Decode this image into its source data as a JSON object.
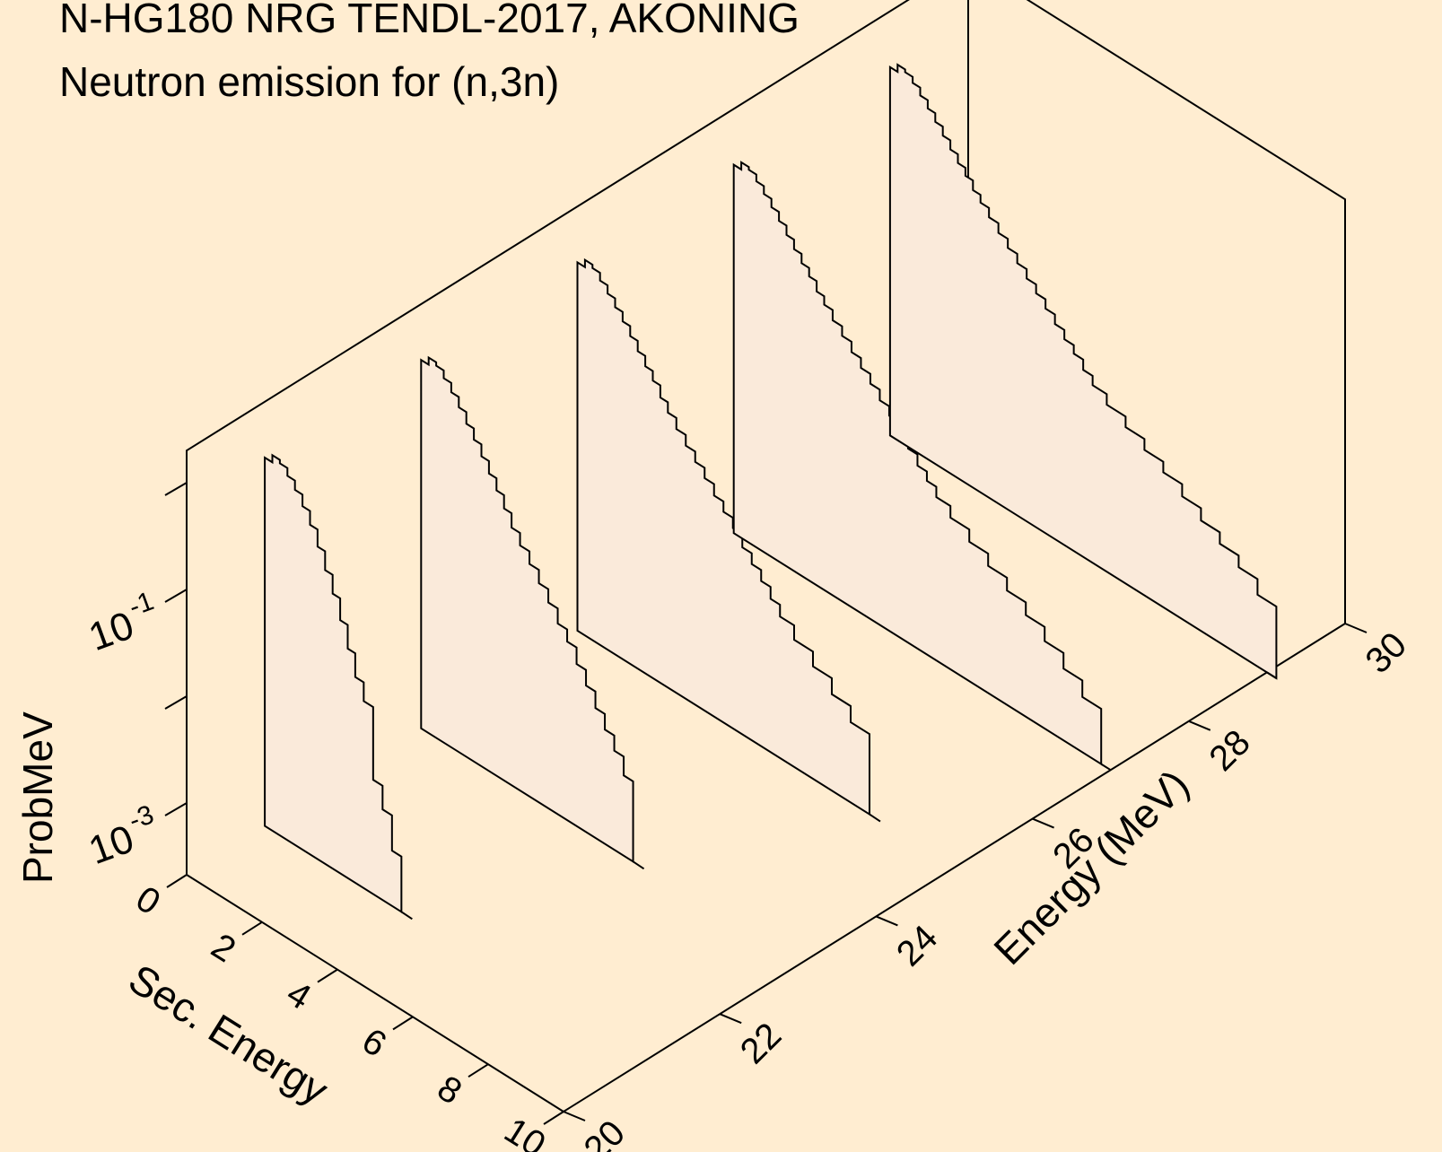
{
  "chart_data": {
    "type": "line",
    "title": "N-HG180 NRG TENDL-2017, AKONING",
    "subtitle": "Neutron emission for (n,3n)",
    "xlabel": "Sec. Energy",
    "ylabel": "Energy (MeV)",
    "zlabel": "ProbMeV",
    "xlim": [
      0,
      10
    ],
    "ylim": [
      20,
      30
    ],
    "zscale": "log",
    "zlim": [
      0.0003,
      2.0
    ],
    "x_ticks": [
      "0",
      "2",
      "4",
      "6",
      "8",
      "10"
    ],
    "y_ticks": [
      "20",
      "22",
      "24",
      "26",
      "28",
      "30"
    ],
    "z_tick_labels": [
      {
        "base": "10",
        "exp": "-3",
        "value": 0.001
      },
      {
        "base": "10",
        "exp": "-1",
        "value": 0.1
      }
    ],
    "z_minor_ticks": [
      0.01,
      1.0
    ],
    "series": [
      {
        "incident_energy": 21,
        "sec_energy": [
          0.1,
          0.3,
          0.5,
          0.7,
          0.9,
          1.1,
          1.3,
          1.5,
          1.7,
          1.9,
          2.1,
          2.3,
          2.5,
          2.75,
          3.0,
          3.25,
          3.5
        ],
        "prob": [
          0.6,
          0.7,
          0.65,
          0.55,
          0.45,
          0.35,
          0.26,
          0.18,
          0.12,
          0.08,
          0.05,
          0.03,
          0.018,
          0.012,
          0.0025,
          0.0015,
          0.0007
        ]
      },
      {
        "incident_energy": 23,
        "sec_energy": [
          0.1,
          0.3,
          0.5,
          0.7,
          0.9,
          1.1,
          1.3,
          1.5,
          1.7,
          1.9,
          2.1,
          2.3,
          2.5,
          2.75,
          3.0,
          3.25,
          3.5,
          3.75,
          4.0,
          4.25,
          4.5,
          4.75,
          5.0,
          5.25,
          5.5
        ],
        "prob": [
          0.6,
          0.7,
          0.65,
          0.55,
          0.45,
          0.36,
          0.28,
          0.22,
          0.17,
          0.13,
          0.1,
          0.075,
          0.055,
          0.042,
          0.032,
          0.024,
          0.018,
          0.013,
          0.01,
          0.007,
          0.005,
          0.0035,
          0.0025,
          0.0018,
          0.0012
        ]
      },
      {
        "incident_energy": 25,
        "sec_energy": [
          0.1,
          0.3,
          0.5,
          0.7,
          0.9,
          1.1,
          1.3,
          1.5,
          1.7,
          1.9,
          2.1,
          2.3,
          2.5,
          2.75,
          3.0,
          3.25,
          3.5,
          3.75,
          4.0,
          4.25,
          4.5,
          4.75,
          5.0,
          5.25,
          5.5,
          6.0,
          6.5,
          7.0,
          7.5
        ],
        "prob": [
          0.6,
          0.7,
          0.65,
          0.55,
          0.46,
          0.38,
          0.31,
          0.25,
          0.2,
          0.16,
          0.13,
          0.1,
          0.08,
          0.063,
          0.05,
          0.04,
          0.032,
          0.025,
          0.02,
          0.016,
          0.012,
          0.0095,
          0.0075,
          0.0058,
          0.0045,
          0.0033,
          0.0024,
          0.0017,
          0.0012
        ]
      },
      {
        "incident_energy": 27,
        "sec_energy": [
          0.1,
          0.3,
          0.5,
          0.7,
          0.9,
          1.1,
          1.3,
          1.5,
          1.7,
          1.9,
          2.1,
          2.3,
          2.5,
          2.75,
          3.0,
          3.25,
          3.5,
          3.75,
          4.0,
          4.25,
          4.5,
          4.75,
          5.0,
          5.25,
          5.5,
          6.0,
          6.5,
          7.0,
          7.5,
          8.0,
          8.5,
          9.0,
          9.5
        ],
        "prob": [
          0.6,
          0.7,
          0.66,
          0.57,
          0.48,
          0.4,
          0.33,
          0.27,
          0.22,
          0.18,
          0.15,
          0.12,
          0.1,
          0.08,
          0.065,
          0.052,
          0.042,
          0.034,
          0.027,
          0.022,
          0.018,
          0.014,
          0.011,
          0.009,
          0.0072,
          0.0056,
          0.0043,
          0.0033,
          0.0025,
          0.0019,
          0.0014,
          0.001,
          0.0007
        ]
      },
      {
        "incident_energy": 29,
        "sec_energy": [
          0.1,
          0.3,
          0.5,
          0.7,
          0.9,
          1.1,
          1.3,
          1.5,
          1.7,
          1.9,
          2.1,
          2.3,
          2.5,
          2.75,
          3.0,
          3.25,
          3.5,
          3.75,
          4.0,
          4.25,
          4.5,
          4.75,
          5.0,
          5.25,
          5.5,
          6.0,
          6.5,
          7.0,
          7.5,
          8.0,
          8.5,
          9.0,
          9.5,
          10.0
        ],
        "prob": [
          0.6,
          0.7,
          0.66,
          0.58,
          0.49,
          0.41,
          0.34,
          0.28,
          0.23,
          0.19,
          0.16,
          0.13,
          0.11,
          0.09,
          0.073,
          0.06,
          0.049,
          0.04,
          0.033,
          0.027,
          0.022,
          0.018,
          0.015,
          0.012,
          0.0098,
          0.0078,
          0.0062,
          0.0049,
          0.0039,
          0.003,
          0.0023,
          0.0018,
          0.0014,
          0.001
        ]
      }
    ]
  }
}
